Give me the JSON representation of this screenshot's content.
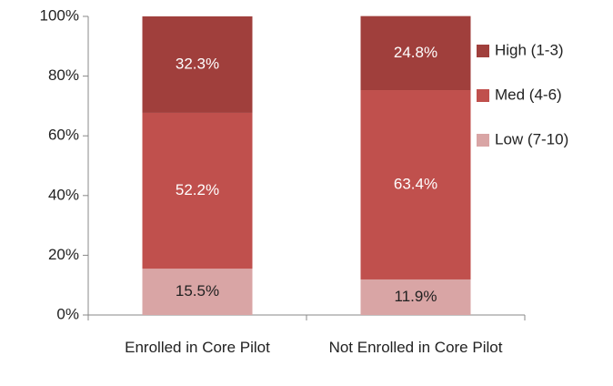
{
  "chart_data": {
    "type": "stacked_bar",
    "categories": [
      "Enrolled in Core Pilot",
      "Not Enrolled in Core Pilot"
    ],
    "series": [
      {
        "name": "Low (7-10)",
        "color": "#d9a5a5",
        "values": [
          15.5,
          11.9
        ],
        "value_labels": [
          "15.5%",
          "11.9%"
        ]
      },
      {
        "name": "Med (4-6)",
        "color": "#c0504d",
        "values": [
          52.2,
          63.4
        ],
        "value_labels": [
          "52.2%",
          "63.4%"
        ]
      },
      {
        "name": "High (1-3)",
        "color": "#a03f3c",
        "values": [
          32.3,
          24.8
        ],
        "value_labels": [
          "32.3%",
          "24.8%"
        ]
      }
    ],
    "ylim": [
      0,
      100
    ],
    "yticks": [
      {
        "value": 0,
        "label": "0%"
      },
      {
        "value": 20,
        "label": "20%"
      },
      {
        "value": 40,
        "label": "40%"
      },
      {
        "value": 60,
        "label": "60%"
      },
      {
        "value": 80,
        "label": "80%"
      },
      {
        "value": 100,
        "label": "100%"
      }
    ],
    "legend": "right"
  }
}
